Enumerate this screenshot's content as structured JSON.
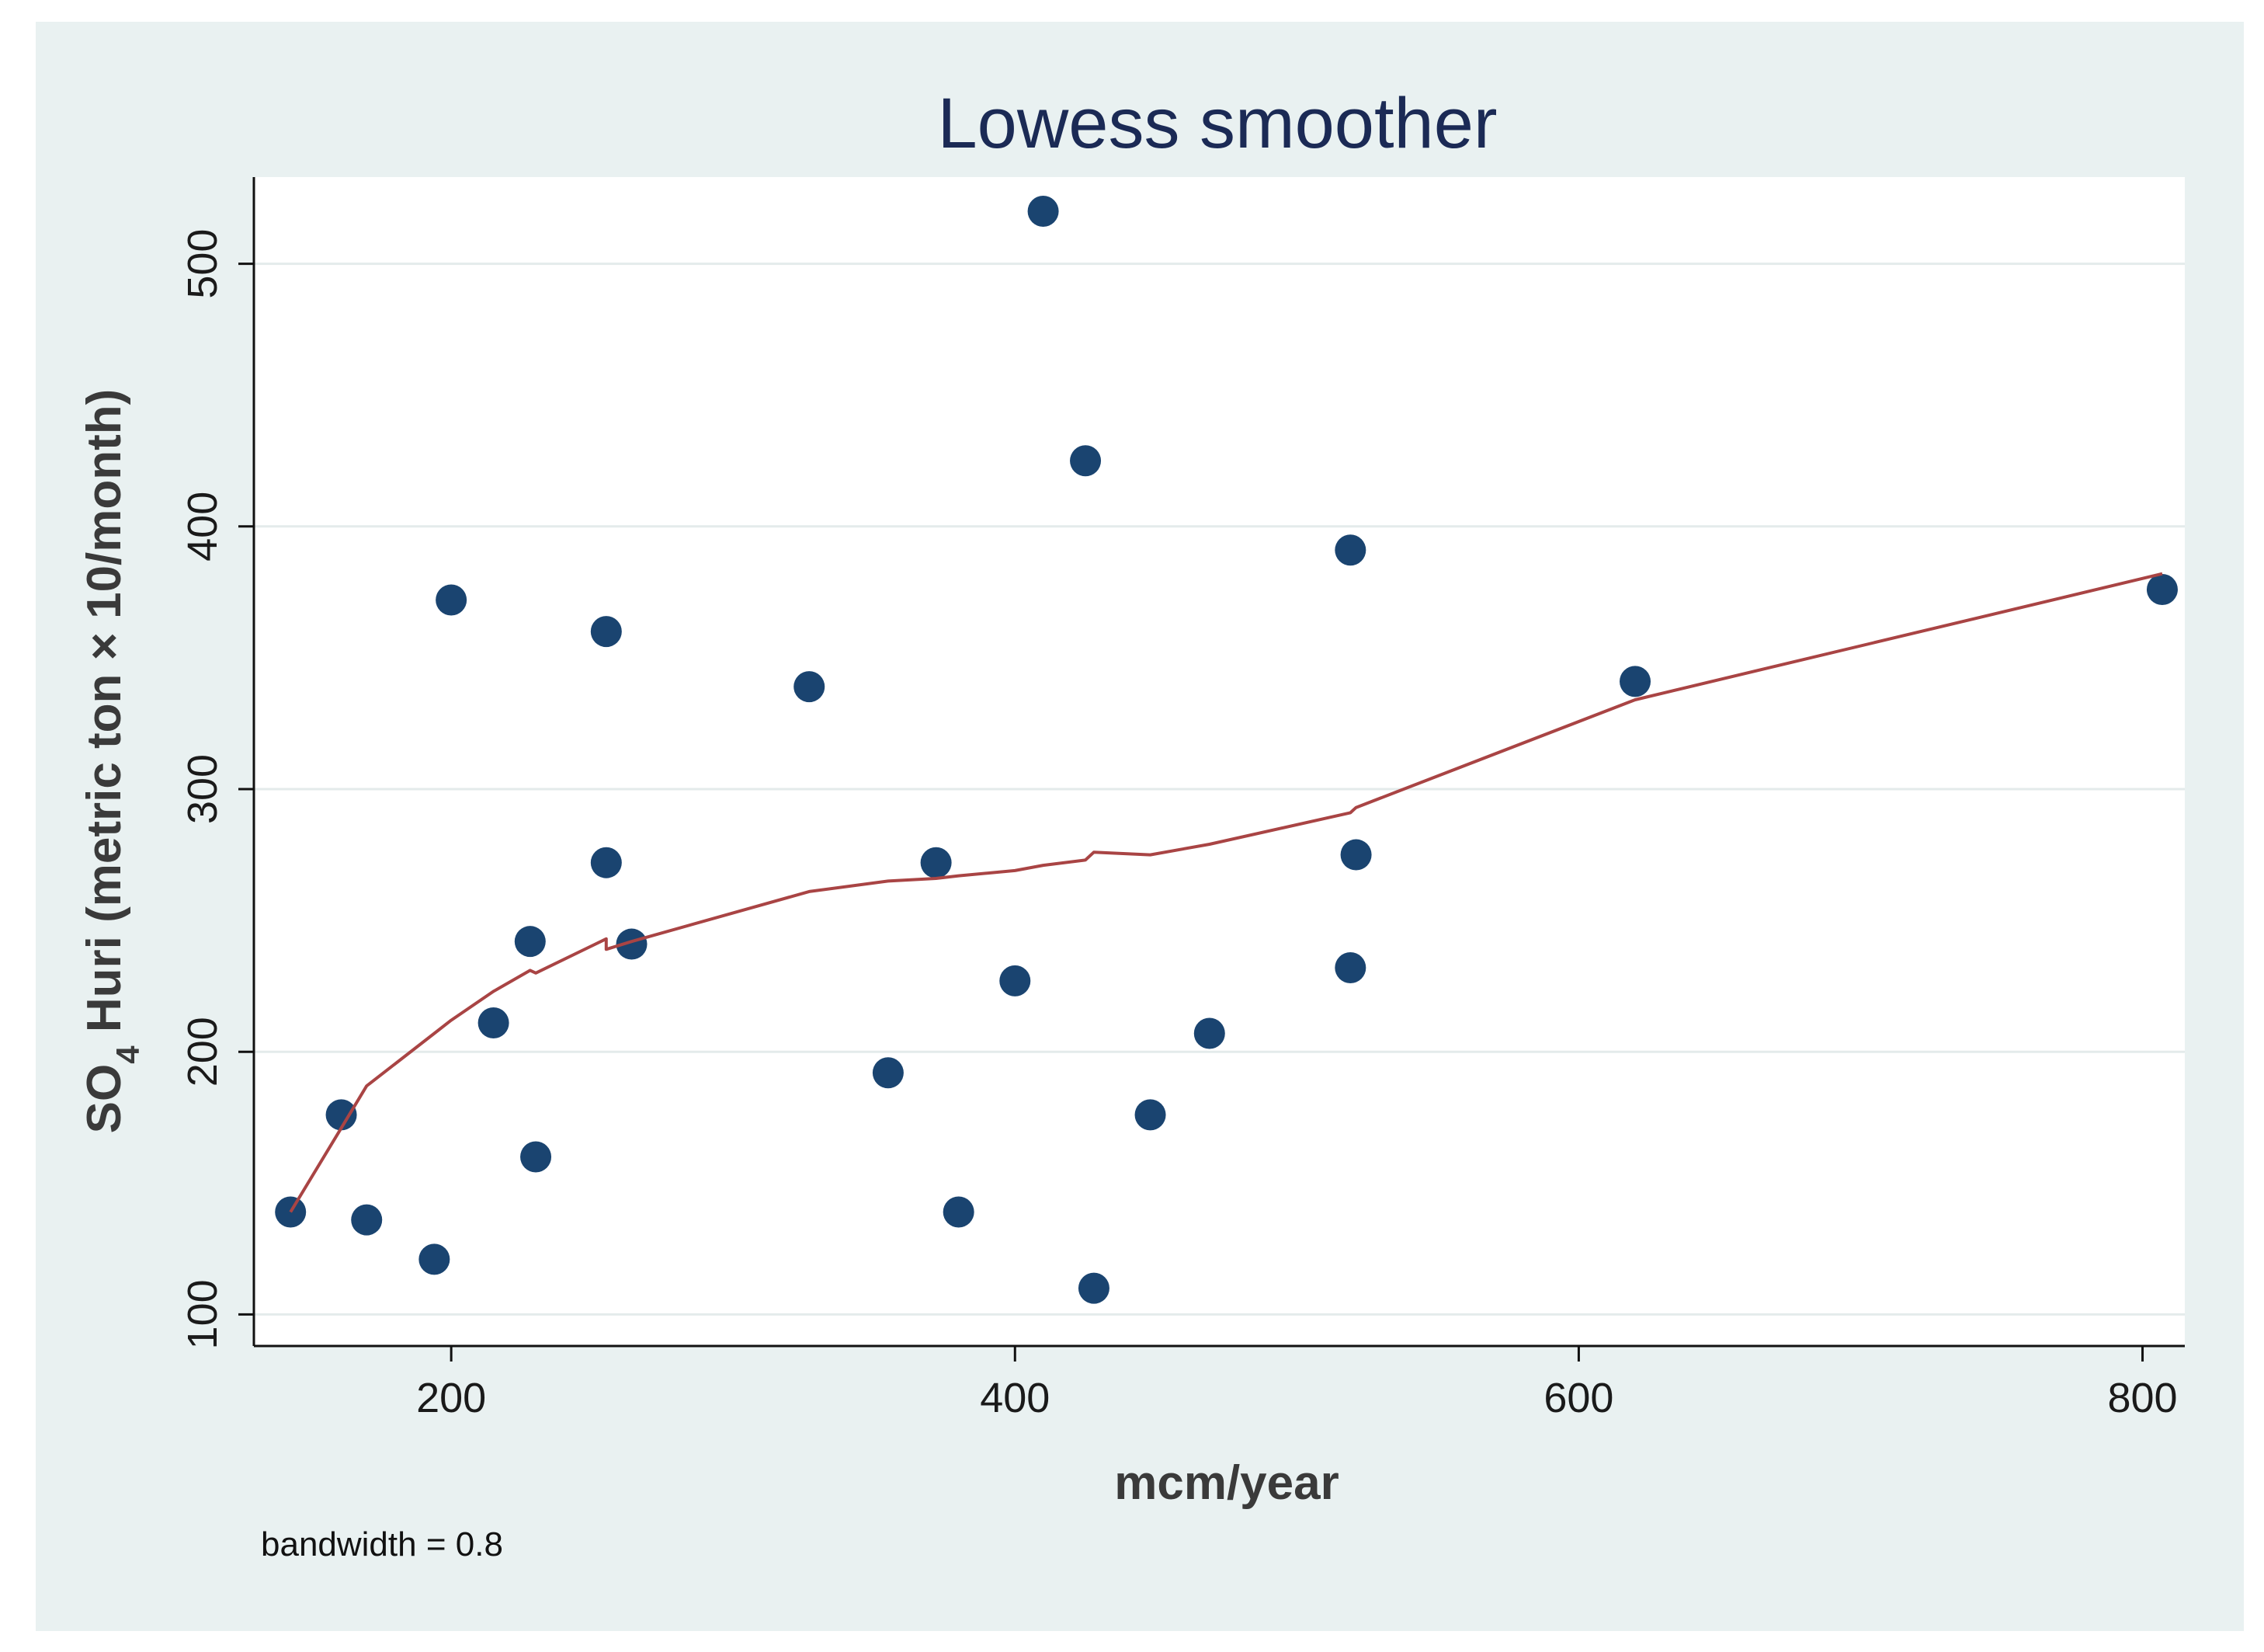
{
  "chart_data": {
    "type": "scatter",
    "title": "Lowess smoother",
    "xlabel": "mcm/year",
    "ylabel_parts": {
      "prefix": "SO",
      "subscript": "4",
      "suffix": " Huri (metric ton × 10/month)"
    },
    "note": "bandwidth = 0.8",
    "xlim": [
      130,
      815
    ],
    "ylim": [
      88,
      533
    ],
    "xticks": [
      200,
      400,
      600,
      800
    ],
    "yticks": [
      100,
      200,
      300,
      400,
      500
    ],
    "grid": true,
    "points": [
      {
        "x": 143,
        "y": 139
      },
      {
        "x": 161,
        "y": 176
      },
      {
        "x": 170,
        "y": 136
      },
      {
        "x": 194,
        "y": 121
      },
      {
        "x": 200,
        "y": 372
      },
      {
        "x": 215,
        "y": 211
      },
      {
        "x": 228,
        "y": 242
      },
      {
        "x": 230,
        "y": 160
      },
      {
        "x": 255,
        "y": 360
      },
      {
        "x": 255,
        "y": 272
      },
      {
        "x": 264,
        "y": 241
      },
      {
        "x": 327,
        "y": 339
      },
      {
        "x": 355,
        "y": 192
      },
      {
        "x": 372,
        "y": 272
      },
      {
        "x": 380,
        "y": 139
      },
      {
        "x": 400,
        "y": 227
      },
      {
        "x": 410,
        "y": 520
      },
      {
        "x": 425,
        "y": 425
      },
      {
        "x": 428,
        "y": 110
      },
      {
        "x": 448,
        "y": 176
      },
      {
        "x": 469,
        "y": 207
      },
      {
        "x": 519,
        "y": 391
      },
      {
        "x": 519,
        "y": 232
      },
      {
        "x": 521,
        "y": 275
      },
      {
        "x": 620,
        "y": 341
      },
      {
        "x": 807,
        "y": 376
      }
    ],
    "lowess": {
      "x": [
        143,
        161,
        170,
        194,
        200,
        215,
        228,
        230,
        255,
        255,
        264,
        327,
        355,
        372,
        380,
        400,
        410,
        425,
        428,
        448,
        469,
        519,
        519,
        521,
        620,
        807
      ],
      "y": [
        139,
        171,
        187,
        207,
        212,
        223,
        231,
        230,
        243,
        239,
        242,
        261,
        265,
        266,
        267,
        269,
        271,
        273,
        276,
        275,
        279,
        291,
        291,
        293,
        334,
        382
      ]
    },
    "colors": {
      "marker": "#1a4470",
      "line": "#a94444",
      "grid": "#e4ebeb",
      "plot_bg": "#ffffff",
      "outer_bg": "#e9f1f1"
    }
  }
}
